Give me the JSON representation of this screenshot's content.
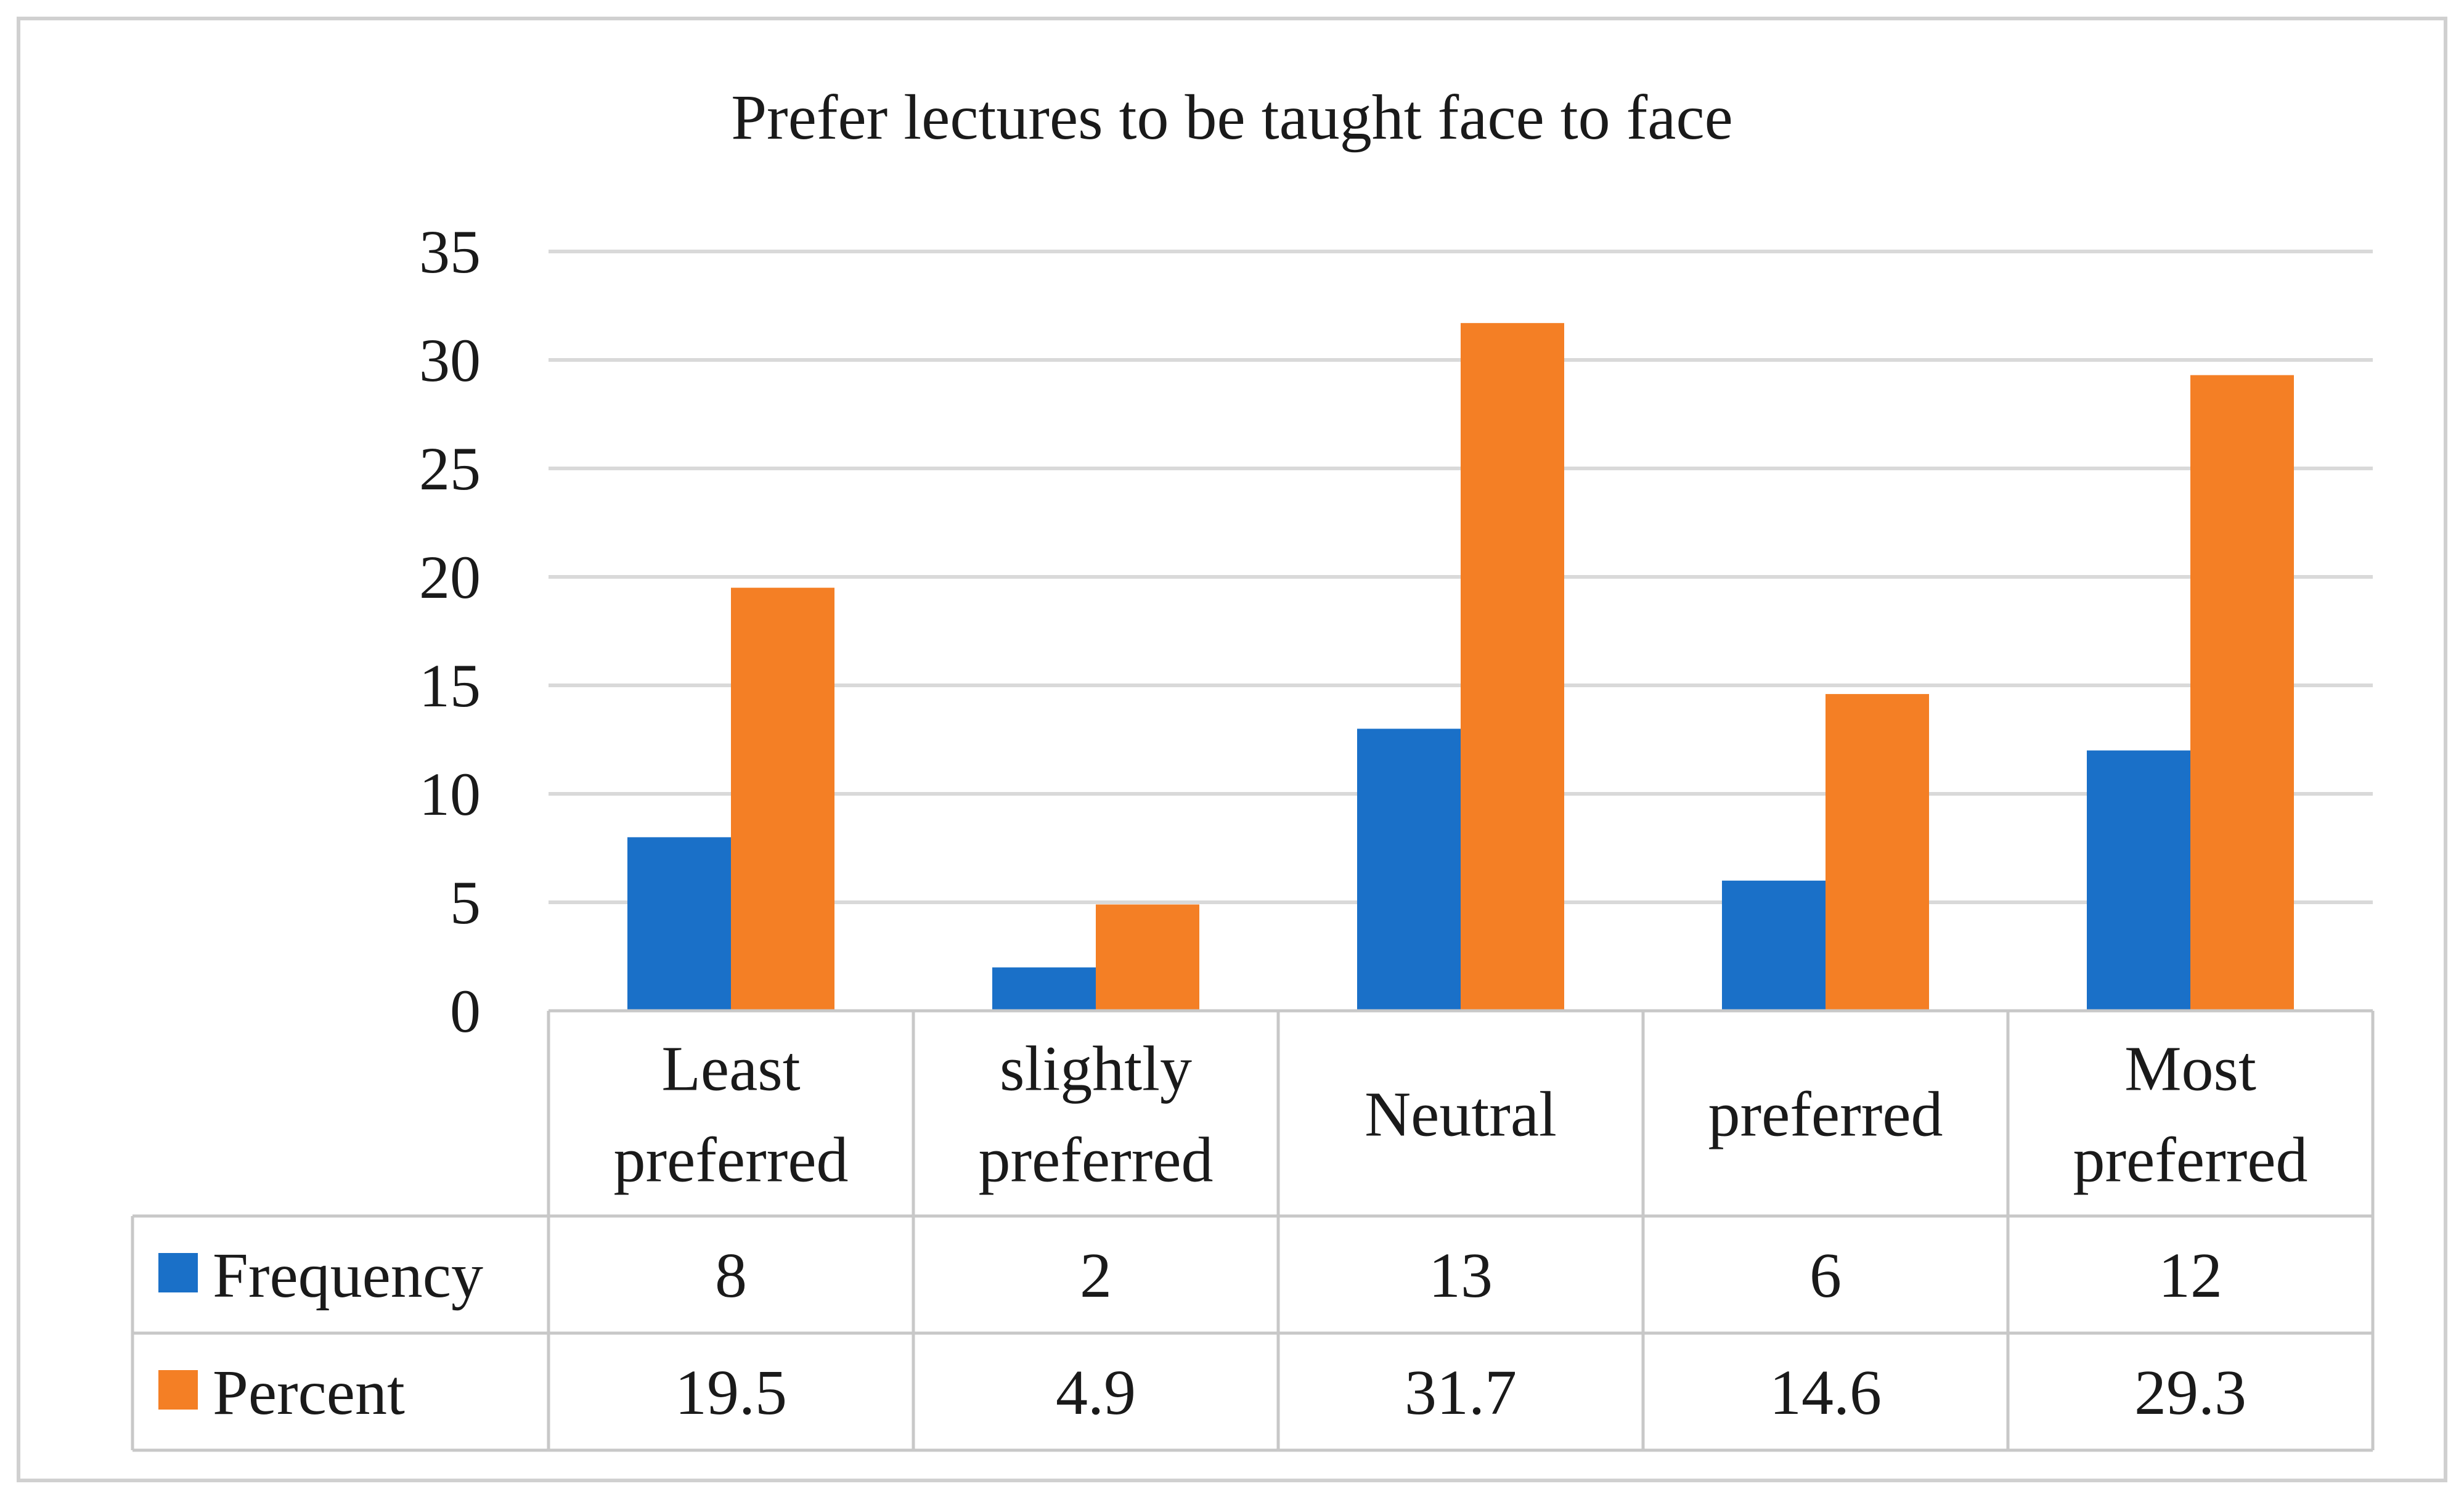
{
  "chart_data": {
    "type": "bar",
    "title": "Prefer lectures to be taught face to face",
    "categories": [
      [
        "Least",
        "preferred"
      ],
      [
        "slightly",
        "preferred"
      ],
      [
        "Neutral"
      ],
      [
        "preferred"
      ],
      [
        "Most",
        "preferred"
      ]
    ],
    "series": [
      {
        "name": "Frequency",
        "values": [
          8,
          2,
          13,
          6,
          12
        ],
        "labels": [
          "8",
          "2",
          "13",
          "6",
          "12"
        ],
        "color": "#1a70c8"
      },
      {
        "name": "Percent",
        "values": [
          19.5,
          4.9,
          31.7,
          14.6,
          29.3
        ],
        "labels": [
          "19.5",
          "4.9",
          "31.7",
          "14.6",
          "29.3"
        ],
        "color": "#f47f25"
      }
    ],
    "ylim": [
      0,
      35
    ],
    "yticks": [
      0,
      5,
      10,
      15,
      20,
      25,
      30,
      35
    ],
    "grid": true,
    "legend": "data-table"
  }
}
